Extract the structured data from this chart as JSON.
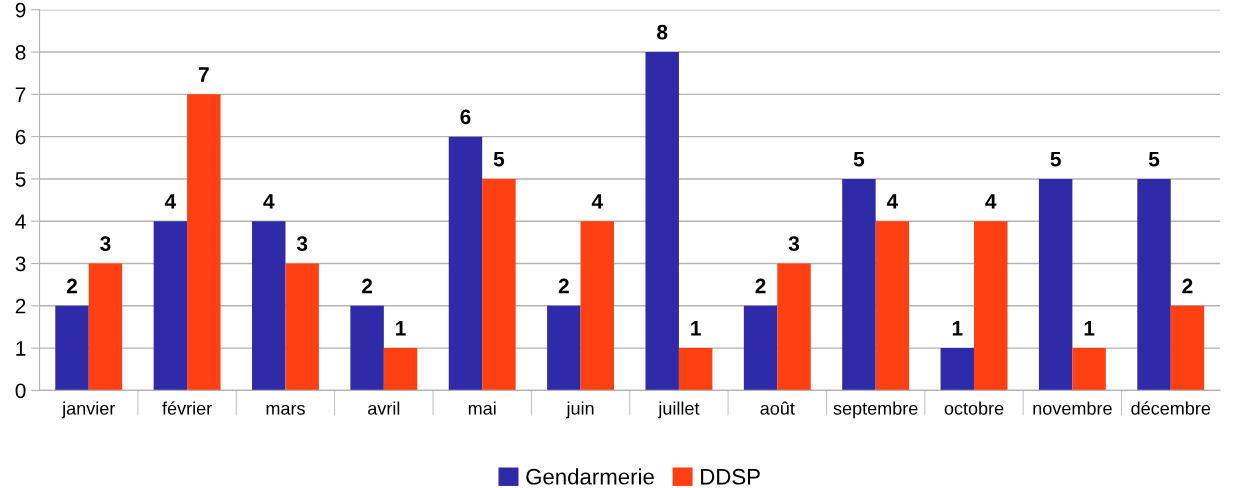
{
  "chart_data": {
    "type": "bar",
    "categories": [
      "janvier",
      "février",
      "mars",
      "avril",
      "mai",
      "juin",
      "juillet",
      "août",
      "septembre",
      "octobre",
      "novembre",
      "décembre"
    ],
    "series": [
      {
        "name": "Gendarmerie",
        "color": "#2e2aa8",
        "values": [
          2,
          4,
          4,
          2,
          6,
          2,
          8,
          2,
          5,
          1,
          5,
          5
        ]
      },
      {
        "name": "DDSP",
        "color": "#ff4012",
        "values": [
          3,
          7,
          3,
          1,
          5,
          4,
          1,
          3,
          4,
          4,
          1,
          2
        ]
      }
    ],
    "ylim": [
      0,
      9
    ],
    "yticks": [
      0,
      1,
      2,
      3,
      4,
      5,
      6,
      7,
      8,
      9
    ],
    "grid": "y",
    "legend": "bottom",
    "data_labels": true
  }
}
